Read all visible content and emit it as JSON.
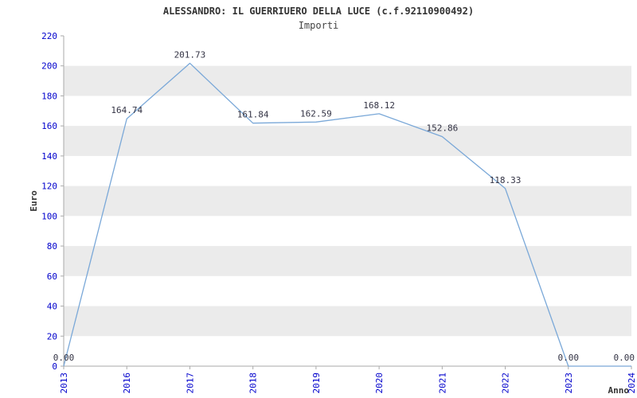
{
  "header": {
    "title": "ALESSANDRO: IL GUERRIUERO DELLA LUCE (c.f.92110900492)",
    "subtitle": "Importi"
  },
  "chart_data": {
    "type": "line",
    "title": "ALESSANDRO: IL GUERRIUERO DELLA LUCE (c.f.92110900492)",
    "subtitle": "Importi",
    "xlabel": "Anno",
    "ylabel": "Euro",
    "x": [
      "2013",
      "2016",
      "2017",
      "2018",
      "2019",
      "2020",
      "2021",
      "2022",
      "2023",
      "2024"
    ],
    "series": [
      {
        "name": "Importi",
        "values": [
          0.0,
          164.74,
          201.73,
          161.84,
          162.59,
          168.12,
          152.86,
          118.33,
          0.0,
          0.0
        ]
      }
    ],
    "point_labels": [
      "0.00",
      "164.74",
      "201.73",
      "161.84",
      "162.59",
      "168.12",
      "152.86",
      "118.33",
      "0.00",
      "0.00"
    ],
    "ylim": [
      0,
      220
    ],
    "ytick_step": 20,
    "grid": "horizontal-bands",
    "legend": "none",
    "colors": {
      "line": "#7aa8d8",
      "tick_label": "#0000cc",
      "band": "#ebebeb",
      "data_label": "#333344",
      "axis": "#aaaaaa",
      "axis_title": "#333333",
      "title": "#333333"
    }
  }
}
